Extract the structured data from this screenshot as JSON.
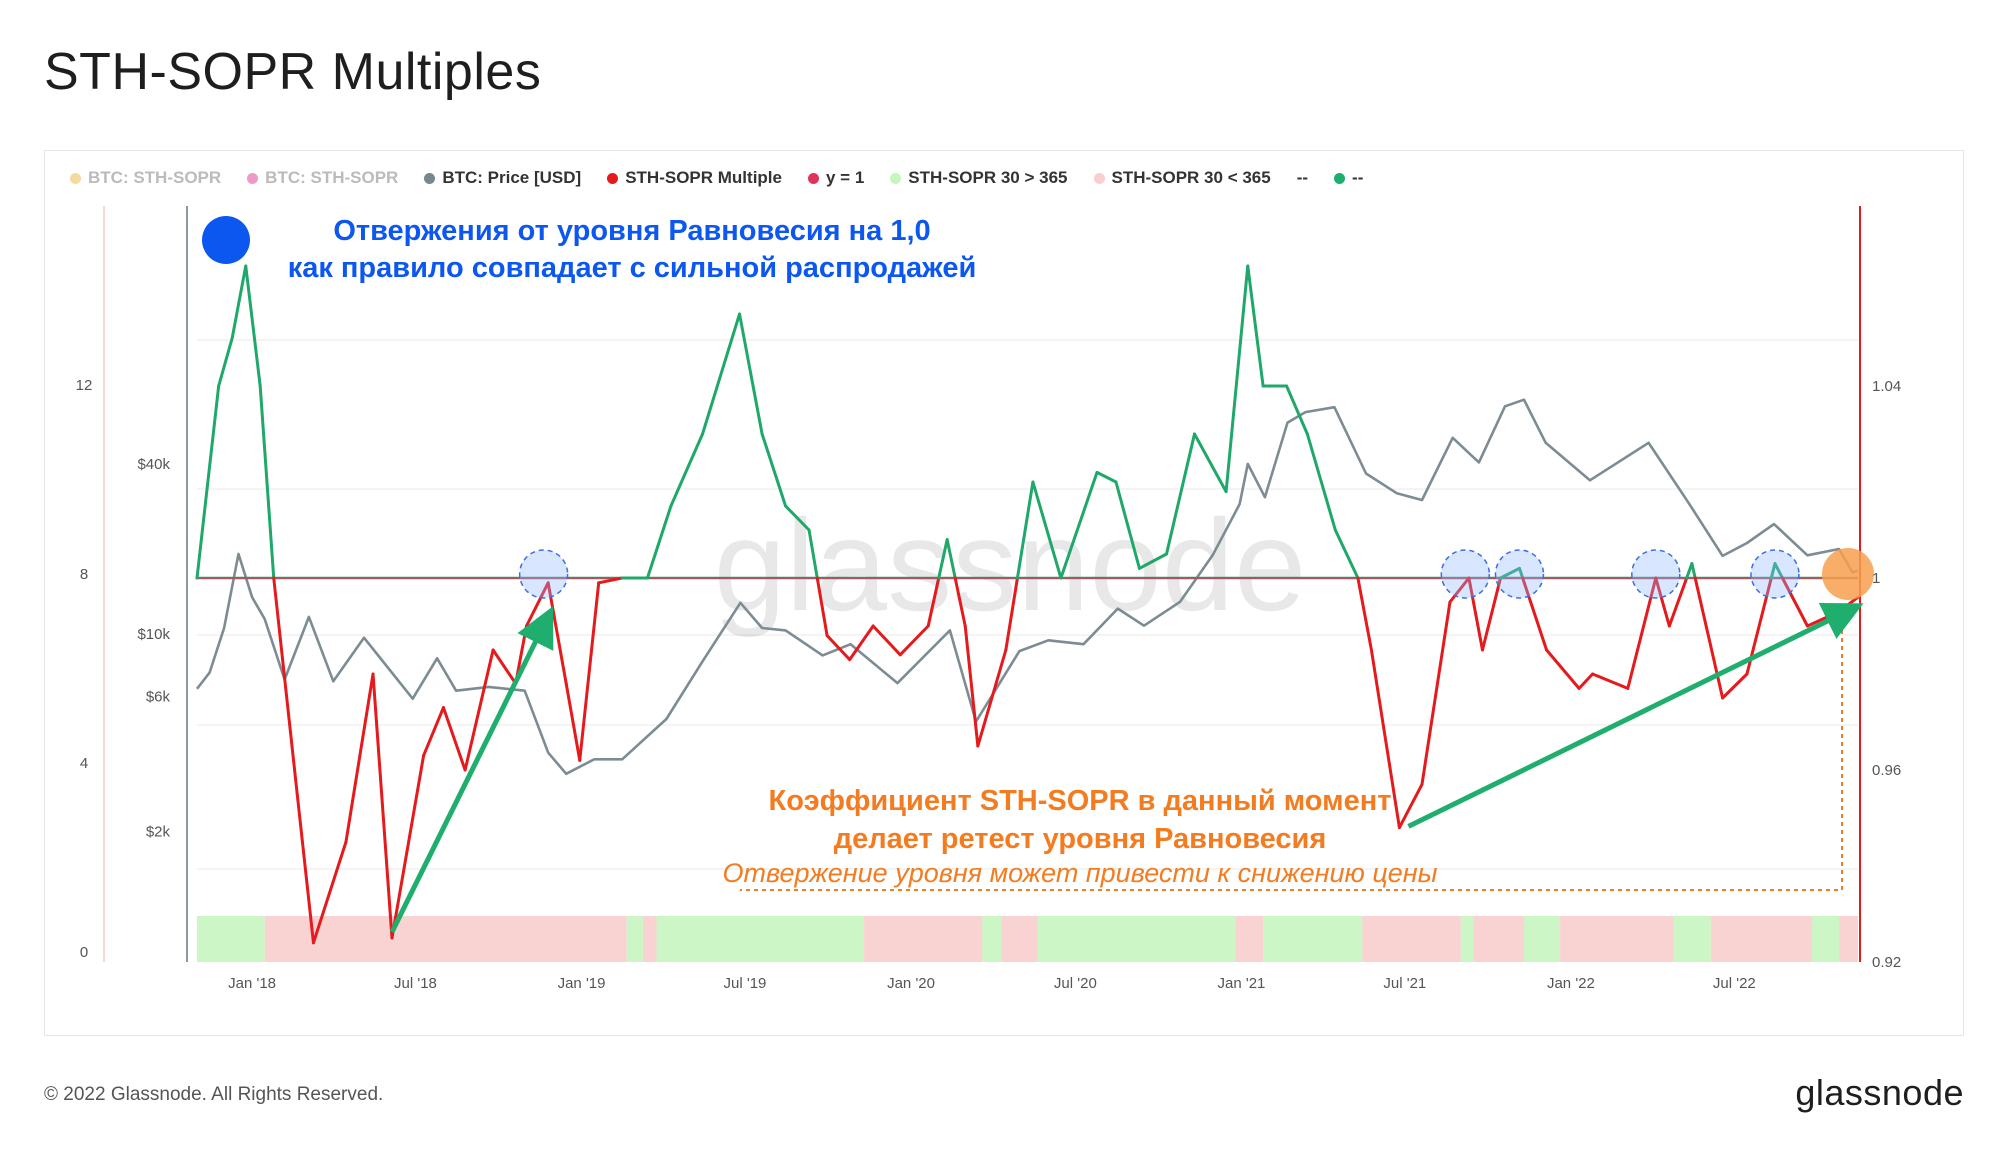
{
  "page": {
    "title": "STH-SOPR Multiples",
    "copyright": "© 2022 Glassnode. All Rights Reserved.",
    "logo": "glassnode",
    "watermark": "glassnode"
  },
  "legend": [
    {
      "label": "BTC: STH-SOPR",
      "color": "#e8b540",
      "muted": true
    },
    {
      "label": "BTC: STH-SOPR",
      "color": "#e0338f",
      "muted": true
    },
    {
      "label": "BTC: Price [USD]",
      "color": "#76878f",
      "muted": false
    },
    {
      "label": "STH-SOPR Multiple",
      "color": "#e41a1c",
      "muted": false
    },
    {
      "label": "y = 1",
      "color": "#e0335a",
      "muted": false
    },
    {
      "label": "STH-SOPR 30 > 365",
      "color": "#c7f5c0",
      "muted": false
    },
    {
      "label": "STH-SOPR 30 < 365",
      "color": "#f8cfcf",
      "muted": false
    },
    {
      "label": "--",
      "color": "",
      "muted": false
    },
    {
      "label": "--",
      "color": "#1fae6e",
      "muted": false
    }
  ],
  "annotations": {
    "blue_title_line1": "Отвержения от уровня Равновесия на 1,0",
    "blue_title_line2": "как правило совпадает с сильной распродажей",
    "orange_line1": "Коэффициент STH-SOPR в данный момент",
    "orange_line2": "делает ретест уровня Равновесия",
    "orange_italic": "Отвержение уровня может привести к снижению цены"
  },
  "colors": {
    "price": "#7d8c93",
    "green": "#1fa86a",
    "red": "#e41a1c",
    "blue_text": "#0b57f0",
    "orange_text": "#f47c20",
    "band_green": "#cdf6c6",
    "band_red": "#f9d2d2"
  },
  "chart_data": {
    "type": "line",
    "x_ticks": [
      "Jan '18",
      "Jul '18",
      "Jan '19",
      "Jul '19",
      "Jan '20",
      "Jul '20",
      "Jan '21",
      "Jul '21",
      "Jan '22",
      "Jul '22"
    ],
    "axes": {
      "left_outer": {
        "ticks": [
          "12",
          "8",
          "4",
          "0"
        ],
        "values": [
          12,
          8,
          4,
          0
        ]
      },
      "left_price": {
        "ticks": [
          "$40k",
          "$10k",
          "$6k",
          "$2k"
        ],
        "values": [
          40000,
          10000,
          6000,
          2000
        ],
        "scale": "log"
      },
      "right": {
        "ticks": [
          "1.04",
          "1",
          "0.96",
          "0.92"
        ],
        "values": [
          1.04,
          1.0,
          0.96,
          0.92
        ]
      }
    },
    "date_range": [
      "2017-11-01",
      "2022-11-15"
    ],
    "price_usd": [
      [
        "2017-11-01",
        6400
      ],
      [
        "2017-11-15",
        7300
      ],
      [
        "2017-12-01",
        10500
      ],
      [
        "2017-12-17",
        19200
      ],
      [
        "2018-01-01",
        13500
      ],
      [
        "2018-01-15",
        11300
      ],
      [
        "2018-02-06",
        6900
      ],
      [
        "2018-03-05",
        11500
      ],
      [
        "2018-04-01",
        6800
      ],
      [
        "2018-05-05",
        9700
      ],
      [
        "2018-06-28",
        5900
      ],
      [
        "2018-07-25",
        8200
      ],
      [
        "2018-08-15",
        6300
      ],
      [
        "2018-09-20",
        6500
      ],
      [
        "2018-10-30",
        6300
      ],
      [
        "2018-11-25",
        3800
      ],
      [
        "2018-12-15",
        3200
      ],
      [
        "2019-01-15",
        3600
      ],
      [
        "2019-02-15",
        3600
      ],
      [
        "2019-04-05",
        5000
      ],
      [
        "2019-05-15",
        8000
      ],
      [
        "2019-06-26",
        12900
      ],
      [
        "2019-07-20",
        10500
      ],
      [
        "2019-08-15",
        10300
      ],
      [
        "2019-09-25",
        8400
      ],
      [
        "2019-10-26",
        9200
      ],
      [
        "2019-12-17",
        6700
      ],
      [
        "2020-02-13",
        10300
      ],
      [
        "2020-03-13",
        4900
      ],
      [
        "2020-04-30",
        8700
      ],
      [
        "2020-06-01",
        9500
      ],
      [
        "2020-07-10",
        9200
      ],
      [
        "2020-08-17",
        12300
      ],
      [
        "2020-09-15",
        10700
      ],
      [
        "2020-10-25",
        13000
      ],
      [
        "2020-11-30",
        19000
      ],
      [
        "2020-12-30",
        28800
      ],
      [
        "2021-01-08",
        40000
      ],
      [
        "2021-01-27",
        30500
      ],
      [
        "2021-02-21",
        56000
      ],
      [
        "2021-03-13",
        61000
      ],
      [
        "2021-04-14",
        63500
      ],
      [
        "2021-05-19",
        37000
      ],
      [
        "2021-06-22",
        31500
      ],
      [
        "2021-07-20",
        29800
      ],
      [
        "2021-08-23",
        49500
      ],
      [
        "2021-09-21",
        40500
      ],
      [
        "2021-10-20",
        64000
      ],
      [
        "2021-11-10",
        67500
      ],
      [
        "2021-12-04",
        47500
      ],
      [
        "2022-01-22",
        35000
      ],
      [
        "2022-03-28",
        47500
      ],
      [
        "2022-05-12",
        28900
      ],
      [
        "2022-06-18",
        18900
      ],
      [
        "2022-07-15",
        21000
      ],
      [
        "2022-08-14",
        24500
      ],
      [
        "2022-09-20",
        19000
      ],
      [
        "2022-10-25",
        20000
      ],
      [
        "2022-11-09",
        16500
      ],
      [
        "2022-11-15",
        16800
      ]
    ],
    "sth_sopr_multiple": [
      [
        "2017-11-01",
        1.0
      ],
      [
        "2017-11-25",
        1.04
      ],
      [
        "2017-12-10",
        1.05
      ],
      [
        "2017-12-25",
        1.065
      ],
      [
        "2018-01-10",
        1.04
      ],
      [
        "2018-01-25",
        1.0
      ],
      [
        "2018-02-20",
        0.955
      ],
      [
        "2018-03-10",
        0.924
      ],
      [
        "2018-04-15",
        0.945
      ],
      [
        "2018-05-15",
        0.98
      ],
      [
        "2018-06-05",
        0.925
      ],
      [
        "2018-07-10",
        0.963
      ],
      [
        "2018-08-01",
        0.973
      ],
      [
        "2018-08-25",
        0.96
      ],
      [
        "2018-09-25",
        0.985
      ],
      [
        "2018-10-20",
        0.978
      ],
      [
        "2018-11-01",
        0.99
      ],
      [
        "2018-11-25",
        0.999
      ],
      [
        "2018-12-15",
        0.978
      ],
      [
        "2018-12-30",
        0.962
      ],
      [
        "2019-01-20",
        0.999
      ],
      [
        "2019-02-15",
        1.0
      ],
      [
        "2019-03-15",
        1.0
      ],
      [
        "2019-04-10",
        1.015
      ],
      [
        "2019-05-15",
        1.03
      ],
      [
        "2019-06-25",
        1.055
      ],
      [
        "2019-07-20",
        1.03
      ],
      [
        "2019-08-15",
        1.015
      ],
      [
        "2019-09-10",
        1.01
      ],
      [
        "2019-09-30",
        0.988
      ],
      [
        "2019-10-25",
        0.983
      ],
      [
        "2019-11-20",
        0.99
      ],
      [
        "2019-12-20",
        0.984
      ],
      [
        "2020-01-20",
        0.99
      ],
      [
        "2020-02-10",
        1.008
      ],
      [
        "2020-03-01",
        0.99
      ],
      [
        "2020-03-15",
        0.965
      ],
      [
        "2020-04-15",
        0.985
      ],
      [
        "2020-05-15",
        1.02
      ],
      [
        "2020-06-15",
        1.0
      ],
      [
        "2020-07-25",
        1.022
      ],
      [
        "2020-08-15",
        1.02
      ],
      [
        "2020-09-10",
        1.002
      ],
      [
        "2020-10-10",
        1.005
      ],
      [
        "2020-11-10",
        1.03
      ],
      [
        "2020-12-15",
        1.018
      ],
      [
        "2021-01-08",
        1.065
      ],
      [
        "2021-01-25",
        1.04
      ],
      [
        "2021-02-20",
        1.04
      ],
      [
        "2021-03-15",
        1.03
      ],
      [
        "2021-04-15",
        1.01
      ],
      [
        "2021-05-10",
        1.0
      ],
      [
        "2021-05-25",
        0.985
      ],
      [
        "2021-06-25",
        0.948
      ],
      [
        "2021-07-20",
        0.957
      ],
      [
        "2021-08-20",
        0.995
      ],
      [
        "2021-09-10",
        1.0
      ],
      [
        "2021-09-25",
        0.985
      ],
      [
        "2021-10-15",
        1.0
      ],
      [
        "2021-11-05",
        1.002
      ],
      [
        "2021-12-05",
        0.985
      ],
      [
        "2022-01-10",
        0.977
      ],
      [
        "2022-01-25",
        0.98
      ],
      [
        "2022-03-05",
        0.977
      ],
      [
        "2022-04-05",
        1.0
      ],
      [
        "2022-04-20",
        0.99
      ],
      [
        "2022-05-15",
        1.003
      ],
      [
        "2022-06-18",
        0.975
      ],
      [
        "2022-07-15",
        0.98
      ],
      [
        "2022-08-15",
        1.003
      ],
      [
        "2022-09-20",
        0.99
      ],
      [
        "2022-10-25",
        0.993
      ],
      [
        "2022-11-15",
        0.996
      ]
    ],
    "y_equals_1": 1.0,
    "regime_bands": [
      {
        "from": "2017-11-01",
        "to": "2018-01-15",
        "state": "STH-SOPR 30 > 365"
      },
      {
        "from": "2018-01-15",
        "to": "2019-02-20",
        "state": "STH-SOPR 30 < 365"
      },
      {
        "from": "2019-02-20",
        "to": "2019-03-10",
        "state": "STH-SOPR 30 > 365"
      },
      {
        "from": "2019-03-10",
        "to": "2019-03-25",
        "state": "STH-SOPR 30 < 365"
      },
      {
        "from": "2019-03-25",
        "to": "2019-11-10",
        "state": "STH-SOPR 30 > 365"
      },
      {
        "from": "2019-11-10",
        "to": "2020-03-20",
        "state": "STH-SOPR 30 < 365"
      },
      {
        "from": "2020-03-20",
        "to": "2020-04-10",
        "state": "STH-SOPR 30 > 365"
      },
      {
        "from": "2020-04-10",
        "to": "2020-05-20",
        "state": "STH-SOPR 30 < 365"
      },
      {
        "from": "2020-05-20",
        "to": "2020-12-25",
        "state": "STH-SOPR 30 > 365"
      },
      {
        "from": "2020-12-25",
        "to": "2021-01-25",
        "state": "STH-SOPR 30 < 365"
      },
      {
        "from": "2021-01-25",
        "to": "2021-05-15",
        "state": "STH-SOPR 30 > 365"
      },
      {
        "from": "2021-05-15",
        "to": "2021-09-01",
        "state": "STH-SOPR 30 < 365"
      },
      {
        "from": "2021-09-01",
        "to": "2021-09-15",
        "state": "STH-SOPR 30 > 365"
      },
      {
        "from": "2021-09-15",
        "to": "2021-11-10",
        "state": "STH-SOPR 30 < 365"
      },
      {
        "from": "2021-11-10",
        "to": "2021-12-20",
        "state": "STH-SOPR 30 > 365"
      },
      {
        "from": "2021-12-20",
        "to": "2022-04-25",
        "state": "STH-SOPR 30 < 365"
      },
      {
        "from": "2022-04-25",
        "to": "2022-06-05",
        "state": "STH-SOPR 30 > 365"
      },
      {
        "from": "2022-06-05",
        "to": "2022-09-25",
        "state": "STH-SOPR 30 < 365"
      },
      {
        "from": "2022-09-25",
        "to": "2022-10-25",
        "state": "STH-SOPR 30 > 365"
      },
      {
        "from": "2022-10-25",
        "to": "2022-11-15",
        "state": "STH-SOPR 30 < 365"
      }
    ],
    "rejection_markers": [
      "2018-11-20",
      "2021-09-06",
      "2021-11-05",
      "2022-04-05",
      "2022-08-15"
    ],
    "current_marker": "2022-11-15",
    "trend_arrows": [
      {
        "from": [
          "2018-06-05",
          0.925
        ],
        "to": [
          "2018-12-02",
          0.993
        ]
      },
      {
        "from": [
          "2021-07-05",
          0.947
        ],
        "to": [
          "2022-11-15",
          0.995
        ]
      }
    ],
    "grid": true,
    "legend_position": "top"
  }
}
